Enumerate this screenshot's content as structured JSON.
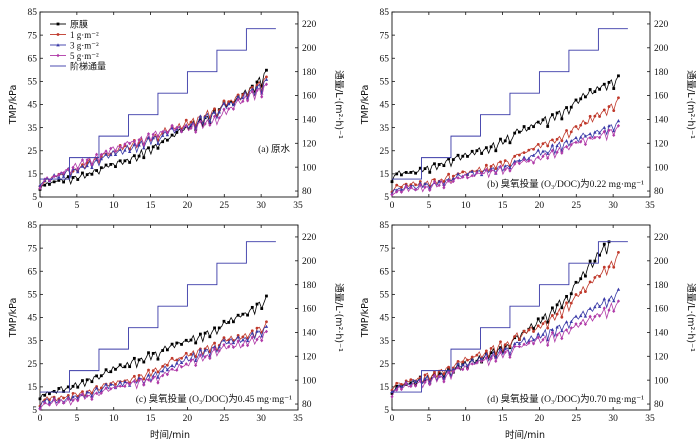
{
  "figure": {
    "x_axis_label": "时间/min"
  },
  "legend": {
    "items": [
      {
        "label": "原膜",
        "color": "#000000",
        "marker": "square"
      },
      {
        "label": "1 g·m⁻²",
        "color": "#c0392b",
        "marker": "circle"
      },
      {
        "label": "3 g·m⁻²",
        "color": "#3a3aa8",
        "marker": "triangle"
      },
      {
        "label": "5 g·m⁻²",
        "color": "#b03aa8",
        "marker": "diamond"
      },
      {
        "label": "阶梯通量",
        "color": "#3a3aa8",
        "marker": "none"
      }
    ]
  },
  "colors": {
    "raw_membrane": "#000000",
    "dose_1": "#c0392b",
    "dose_3": "#3a3aa8",
    "dose_5": "#b03aa8",
    "step_flux": "#3a3aa8"
  },
  "chart_data": [
    {
      "type": "line",
      "annotation": "(a) 原水",
      "xlabel": "",
      "ylabel": "TMP/kPa",
      "y2label": "通量/L·(m²·h)⁻¹",
      "xlim": [
        0,
        35
      ],
      "ylim": [
        5,
        85
      ],
      "y2lim": [
        75,
        230
      ],
      "xticks": [
        0,
        5,
        10,
        15,
        20,
        25,
        30,
        35
      ],
      "yticks": [
        5,
        15,
        25,
        35,
        45,
        55,
        65,
        75,
        85
      ],
      "y2ticks": [
        80,
        100,
        120,
        140,
        160,
        180,
        200,
        220
      ],
      "series": [
        {
          "name": "原膜",
          "x": [
            0,
            4,
            8,
            12,
            16,
            20,
            24,
            28,
            31
          ],
          "y": [
            10,
            13,
            17,
            21,
            28,
            35,
            42,
            50,
            60
          ]
        },
        {
          "name": "1 g·m⁻²",
          "x": [
            0,
            4,
            8,
            12,
            16,
            20,
            24,
            28,
            31
          ],
          "y": [
            11,
            16,
            22,
            27,
            32,
            37,
            43,
            50,
            57
          ]
        },
        {
          "name": "3 g·m⁻²",
          "x": [
            0,
            4,
            8,
            12,
            16,
            20,
            24,
            28,
            31
          ],
          "y": [
            11,
            16,
            21,
            26,
            31,
            36,
            42,
            49,
            56
          ]
        },
        {
          "name": "5 g·m⁻²",
          "x": [
            0,
            4,
            8,
            12,
            16,
            20,
            24,
            28,
            31
          ],
          "y": [
            11,
            17,
            23,
            28,
            33,
            35,
            39,
            48,
            54
          ]
        },
        {
          "name": "阶梯通量",
          "axis": "right",
          "x": [
            0,
            4,
            8,
            12,
            16,
            20,
            24,
            28,
            32
          ],
          "y": [
            90,
            108,
            126,
            144,
            162,
            180,
            198,
            216,
            216
          ]
        }
      ]
    },
    {
      "type": "line",
      "annotation": "(b) 臭氧投量 (O₃/DOC)为0.22 mg·mg⁻¹",
      "xlabel": "",
      "ylabel": "TMP/kPa",
      "y2label": "通量/L·(m²·h)⁻¹",
      "xlim": [
        0,
        35
      ],
      "ylim": [
        5,
        85
      ],
      "y2lim": [
        75,
        230
      ],
      "xticks": [
        0,
        5,
        10,
        15,
        20,
        25,
        30,
        35
      ],
      "yticks": [
        5,
        15,
        25,
        35,
        45,
        55,
        65,
        75,
        85
      ],
      "y2ticks": [
        80,
        100,
        120,
        140,
        160,
        180,
        200,
        220
      ],
      "series": [
        {
          "name": "原膜",
          "x": [
            0,
            4,
            8,
            12,
            16,
            20,
            24,
            28,
            31
          ],
          "y": [
            14,
            17,
            21,
            25,
            31,
            37,
            44,
            52,
            57
          ]
        },
        {
          "name": "1 g·m⁻²",
          "x": [
            0,
            4,
            8,
            12,
            16,
            20,
            24,
            28,
            31
          ],
          "y": [
            9,
            11,
            14,
            17,
            21,
            27,
            33,
            40,
            48
          ]
        },
        {
          "name": "3 g·m⁻²",
          "x": [
            0,
            4,
            8,
            12,
            16,
            20,
            24,
            28,
            31
          ],
          "y": [
            8,
            10,
            13,
            16,
            19,
            24,
            29,
            33,
            38
          ]
        },
        {
          "name": "5 g·m⁻²",
          "x": [
            0,
            4,
            8,
            12,
            16,
            20,
            24,
            28,
            31
          ],
          "y": [
            7,
            9,
            12,
            15,
            18,
            22,
            27,
            31,
            36
          ]
        },
        {
          "name": "阶梯通量",
          "axis": "right",
          "x": [
            0,
            4,
            8,
            12,
            16,
            20,
            24,
            28,
            32
          ],
          "y": [
            90,
            108,
            126,
            144,
            162,
            180,
            198,
            216,
            216
          ]
        }
      ]
    },
    {
      "type": "line",
      "annotation": "(c) 臭氧投量 (O₃/DOC)为0.45 mg·mg⁻¹",
      "xlabel": "时间/min",
      "ylabel": "TMP/kPa",
      "y2label": "通量/L·(m²·h)⁻¹",
      "xlim": [
        0,
        35
      ],
      "ylim": [
        5,
        85
      ],
      "y2lim": [
        75,
        230
      ],
      "xticks": [
        0,
        5,
        10,
        15,
        20,
        25,
        30,
        35
      ],
      "yticks": [
        5,
        15,
        25,
        35,
        45,
        55,
        65,
        75,
        85
      ],
      "y2ticks": [
        80,
        100,
        120,
        140,
        160,
        180,
        200,
        220
      ],
      "series": [
        {
          "name": "原膜",
          "x": [
            0,
            4,
            8,
            12,
            16,
            20,
            24,
            28,
            31
          ],
          "y": [
            11,
            15,
            20,
            25,
            30,
            35,
            40,
            47,
            54
          ]
        },
        {
          "name": "1 g·m⁻²",
          "x": [
            0,
            4,
            8,
            12,
            16,
            20,
            24,
            28,
            31
          ],
          "y": [
            9,
            11,
            15,
            18,
            23,
            29,
            34,
            37,
            43
          ]
        },
        {
          "name": "3 g·m⁻²",
          "x": [
            0,
            4,
            8,
            12,
            16,
            20,
            24,
            28,
            31
          ],
          "y": [
            8,
            10,
            14,
            17,
            21,
            27,
            33,
            36,
            41
          ]
        },
        {
          "name": "5 g·m⁻²",
          "x": [
            0,
            4,
            8,
            12,
            16,
            20,
            24,
            28,
            31
          ],
          "y": [
            7,
            9,
            13,
            16,
            19,
            25,
            31,
            34,
            39
          ]
        },
        {
          "name": "阶梯通量",
          "axis": "right",
          "x": [
            0,
            4,
            8,
            12,
            16,
            20,
            24,
            28,
            32
          ],
          "y": [
            90,
            108,
            126,
            144,
            162,
            180,
            198,
            216,
            216
          ]
        }
      ]
    },
    {
      "type": "line",
      "annotation": "(d) 臭氧投量 (O₃/DOC)为0.70 mg·mg⁻¹",
      "xlabel": "时间/min",
      "ylabel": "TMP/kPa",
      "y2label": "通量/L·(m²·h)⁻¹",
      "xlim": [
        0,
        35
      ],
      "ylim": [
        5,
        85
      ],
      "y2lim": [
        75,
        230
      ],
      "xticks": [
        0,
        5,
        10,
        15,
        20,
        25,
        30,
        35
      ],
      "yticks": [
        5,
        15,
        25,
        35,
        45,
        55,
        65,
        75,
        85
      ],
      "y2ticks": [
        80,
        100,
        120,
        140,
        160,
        180,
        200,
        220
      ],
      "series": [
        {
          "name": "原膜",
          "x": [
            0,
            4,
            8,
            12,
            16,
            20,
            24,
            28,
            29.5
          ],
          "y": [
            14,
            18,
            22,
            27,
            34,
            43,
            55,
            72,
            79
          ]
        },
        {
          "name": "1 g·m⁻²",
          "x": [
            0,
            4,
            8,
            12,
            16,
            20,
            24,
            28,
            31
          ],
          "y": [
            15,
            19,
            24,
            29,
            35,
            41,
            51,
            63,
            73
          ]
        },
        {
          "name": "3 g·m⁻²",
          "x": [
            0,
            4,
            8,
            12,
            16,
            20,
            24,
            28,
            31
          ],
          "y": [
            14,
            18,
            22,
            27,
            32,
            37,
            43,
            50,
            57
          ]
        },
        {
          "name": "5 g·m⁻²",
          "x": [
            0,
            4,
            8,
            12,
            16,
            20,
            24,
            28,
            31
          ],
          "y": [
            13,
            17,
            21,
            26,
            31,
            35,
            40,
            46,
            52
          ]
        },
        {
          "name": "阶梯通量",
          "axis": "right",
          "x": [
            0,
            4,
            8,
            12,
            16,
            20,
            24,
            28,
            32
          ],
          "y": [
            90,
            108,
            126,
            144,
            162,
            180,
            198,
            216,
            216
          ]
        }
      ]
    }
  ]
}
